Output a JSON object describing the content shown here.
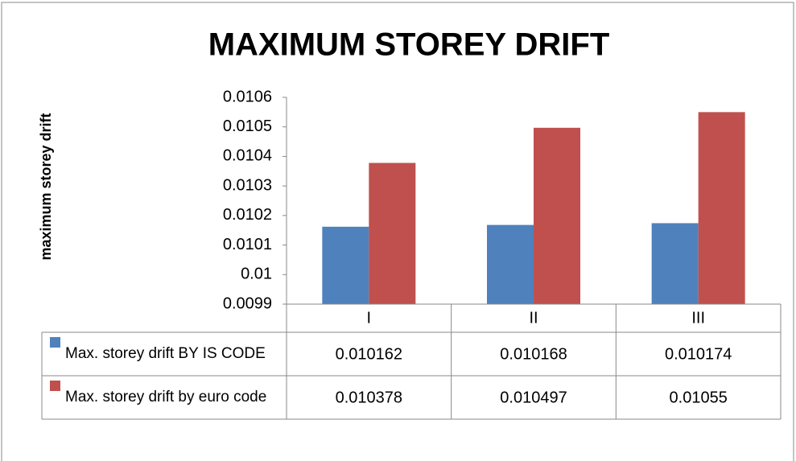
{
  "chart_data": {
    "type": "bar",
    "title": "MAXIMUM STOREY DRIFT",
    "y_label": "maximum storey drift",
    "categories": [
      "I",
      "II",
      "III"
    ],
    "series": [
      {
        "name": "Max. storey drift BY IS CODE",
        "color": "#4f81bd",
        "values": [
          0.010162,
          0.010168,
          0.010174
        ]
      },
      {
        "name": "Max. storey drift by euro code",
        "color": "#c0504d",
        "values": [
          0.010378,
          0.010497,
          0.01055
        ]
      }
    ],
    "ylim": [
      0.0099,
      0.0106
    ],
    "yticks": [
      0.0099,
      0.01,
      0.0101,
      0.0102,
      0.0103,
      0.0104,
      0.0105,
      0.0106
    ],
    "grid": false,
    "data_table": true
  }
}
